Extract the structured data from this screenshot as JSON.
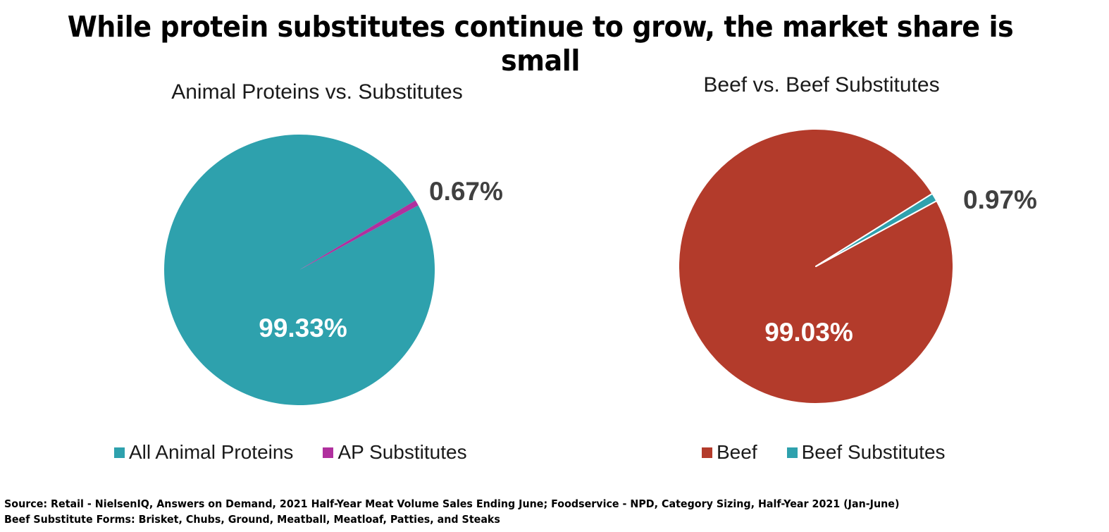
{
  "title": "While protein substitutes continue to grow, the market share is small",
  "chart_data": [
    {
      "type": "pie",
      "title": "Animal Proteins vs. Substitutes",
      "categories": [
        "All Animal Proteins",
        "AP Substitutes"
      ],
      "values": [
        99.33,
        0.67
      ],
      "labels": [
        "99.33%",
        "0.67%"
      ],
      "colors": [
        "#2EA1AD",
        "#B0309E"
      ],
      "legend": "bottom"
    },
    {
      "type": "pie",
      "title": "Beef vs. Beef Substitutes",
      "categories": [
        "Beef",
        "Beef Substitutes"
      ],
      "values": [
        99.03,
        0.97
      ],
      "labels": [
        "99.03%",
        "0.97%"
      ],
      "colors": [
        "#B33B2B",
        "#2EA1AD"
      ],
      "legend": "bottom"
    }
  ],
  "footnotes": [
    "Source: Retail - NielsenIQ, Answers on Demand, 2021 Half-Year Meat Volume Sales Ending June; Foodservice - NPD, Category Sizing, Half-Year 2021 (Jan-June)",
    "Beef Substitute Forms: Brisket, Chubs, Ground, Meatball, Meatloaf, Patties, and Steaks"
  ]
}
